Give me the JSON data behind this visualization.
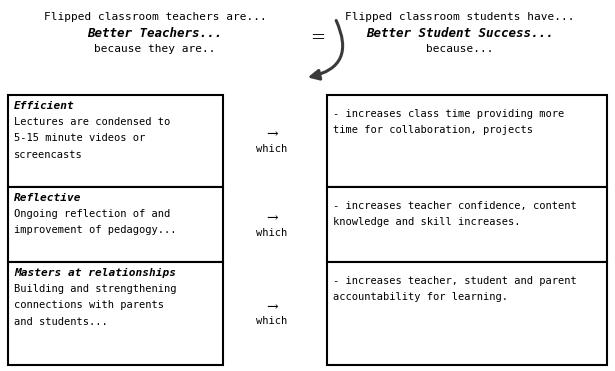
{
  "bg_color": "#ffffff",
  "left_header_line1": "Flipped classroom teachers are...",
  "left_header_line2": "Better Teachers...",
  "left_header_line3": "because they are..",
  "right_header_line1": "Flipped classroom students have...",
  "right_header_line2": "Better Student Success...",
  "right_header_line3": "because...",
  "middle_symbol": "=",
  "rows": [
    {
      "left_bold": "Efficient",
      "left_text": "Lectures are condensed to\n5-15 minute videos or\nscreencasts",
      "right_text": "- increases class time providing more\ntime for collaboration, projects"
    },
    {
      "left_bold": "Reflective",
      "left_text": "Ongoing reflection of and\nimprovement of pedagogy...",
      "right_text": "- increases teacher confidence, content\nknowledge and skill increases."
    },
    {
      "left_bold": "Masters at relationships",
      "left_text": "Building and strengthening\nconnections with parents\nand students...",
      "right_text": "- increases teacher, student and parent\naccountability for learning."
    }
  ],
  "arrow_symbol": "→",
  "which_text": "which",
  "fig_width": 6.15,
  "fig_height": 3.71,
  "dpi": 100
}
